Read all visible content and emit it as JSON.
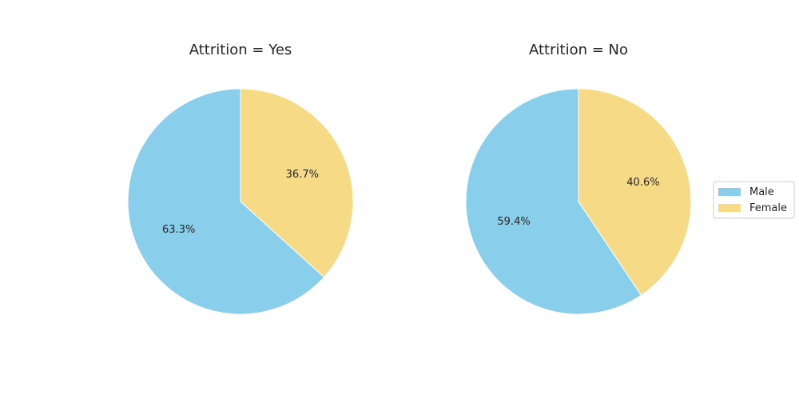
{
  "colors": {
    "male": "#89CFEB",
    "female": "#F6DA86",
    "slice_edge": "#ffffff",
    "legend_border": "#cccccc"
  },
  "legend": {
    "placement": "center-right",
    "entries": [
      "Male",
      "Female"
    ]
  },
  "chart_data": [
    {
      "type": "pie",
      "title": "Attrition = Yes",
      "categories": [
        "Male",
        "Female"
      ],
      "values": [
        63.3,
        36.7
      ],
      "labels": [
        "63.3%",
        "36.7%"
      ],
      "start_angle": "top, counterclockwise"
    },
    {
      "type": "pie",
      "title": "Attrition = No",
      "categories": [
        "Male",
        "Female"
      ],
      "values": [
        59.4,
        40.6
      ],
      "labels": [
        "59.4%",
        "40.6%"
      ],
      "start_angle": "top, counterclockwise"
    }
  ]
}
